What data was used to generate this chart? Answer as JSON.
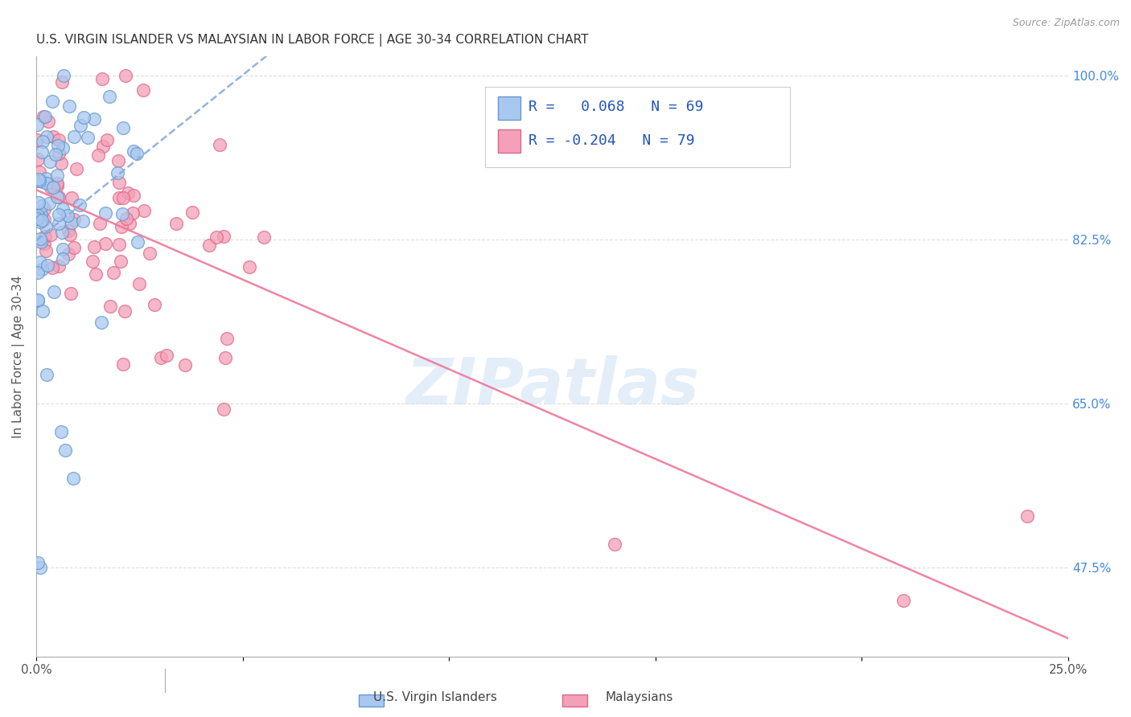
{
  "title": "U.S. VIRGIN ISLANDER VS MALAYSIAN IN LABOR FORCE | AGE 30-34 CORRELATION CHART",
  "source": "Source: ZipAtlas.com",
  "ylabel": "In Labor Force | Age 30-34",
  "xlim": [
    0.0,
    0.25
  ],
  "ylim": [
    0.38,
    1.02
  ],
  "blue_R": 0.068,
  "blue_N": 69,
  "pink_R": -0.204,
  "pink_N": 79,
  "blue_color": "#a8c8f0",
  "pink_color": "#f4a0b8",
  "blue_edge_color": "#6699cc",
  "pink_edge_color": "#dd6688",
  "trend_blue_color": "#88aadd",
  "trend_pink_color": "#ee7799",
  "background_color": "#ffffff",
  "grid_color": "#dddddd",
  "watermark": "ZIPatlas",
  "y_tick_positions": [
    0.475,
    0.65,
    0.825,
    1.0
  ],
  "y_tick_labels": [
    "47.5%",
    "65.0%",
    "82.5%",
    "100.0%"
  ]
}
